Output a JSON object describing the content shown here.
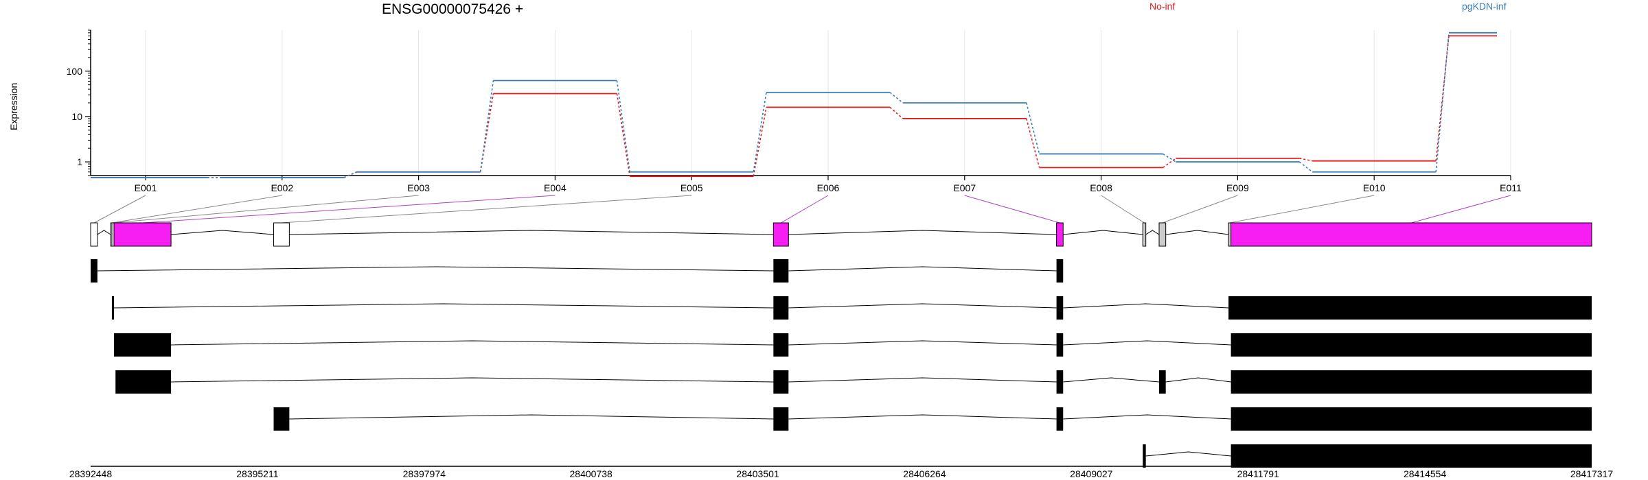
{
  "chart_data": {
    "type": "line",
    "title": "ENSG00000075426 +",
    "ylabel": "Expression",
    "xlabel": "",
    "y_scale": "log",
    "ylim": [
      0.5,
      800
    ],
    "y_ticks": [
      1,
      10,
      100
    ],
    "grid": "vertical-at-exon-ticks",
    "legend_placement": "top",
    "categories": [
      "E001",
      "E002",
      "E003",
      "E004",
      "E005",
      "E006",
      "E007",
      "E008",
      "E009",
      "E010",
      "E011"
    ],
    "series": [
      {
        "name": "No-inf",
        "color": "#e41a1c",
        "values": [
          0.45,
          0.45,
          0.6,
          32,
          0.48,
          16,
          9,
          0.75,
          1.2,
          1.05,
          600
        ]
      },
      {
        "name": "pgKDN-inf",
        "color": "#377eb8",
        "values": [
          0.45,
          0.45,
          0.6,
          62,
          0.6,
          34,
          20,
          1.5,
          1.0,
          0.6,
          700
        ]
      }
    ],
    "gene_model": {
      "coordinate_ticks": [
        "28392448",
        "28395211",
        "28397974",
        "28400738",
        "28403501",
        "28406264",
        "28409027",
        "28411791",
        "28414554",
        "28417317"
      ],
      "genomic_range": [
        28392448,
        28417317
      ],
      "exon_bins": [
        {
          "id": "E001",
          "start": 28392448,
          "end": 28392560,
          "type": "unchanged",
          "fill": "#ffffff"
        },
        {
          "id": "E002",
          "start": 28392780,
          "end": 28392800,
          "type": "unchanged",
          "fill": "#ffffff"
        },
        {
          "id": "E003",
          "start": 28392800,
          "end": 28392835,
          "type": "unchanged",
          "fill": "#ffffff"
        },
        {
          "id": "E004",
          "start": 28392835,
          "end": 28393780,
          "type": "significant",
          "fill": "#f71ef4"
        },
        {
          "id": "E005",
          "start": 28395480,
          "end": 28395740,
          "type": "unchanged",
          "fill": "#ffffff"
        },
        {
          "id": "E006",
          "start": 28403760,
          "end": 28404010,
          "type": "significant",
          "fill": "#f71ef4"
        },
        {
          "id": "E007",
          "start": 28408450,
          "end": 28408560,
          "type": "significant",
          "fill": "#f71ef4"
        },
        {
          "id": "E008",
          "start": 28409880,
          "end": 28409930,
          "type": "tested",
          "fill": "#cccccc"
        },
        {
          "id": "E009",
          "start": 28410150,
          "end": 28410260,
          "type": "tested",
          "fill": "#cccccc"
        },
        {
          "id": "E010",
          "start": 28411300,
          "end": 28411340,
          "type": "tested",
          "fill": "#cccccc"
        },
        {
          "id": "E011",
          "start": 28411340,
          "end": 28417317,
          "type": "significant",
          "fill": "#f71ef4"
        }
      ],
      "transcripts": [
        {
          "exons": [
            [
              28392448,
              28392560
            ],
            [
              28403760,
              28404010
            ],
            [
              28408450,
              28408560
            ]
          ]
        },
        {
          "exons": [
            [
              28392800,
              28392835
            ],
            [
              28403760,
              28404010
            ],
            [
              28408450,
              28408560
            ],
            [
              28411300,
              28417317
            ]
          ]
        },
        {
          "exons": [
            [
              28392835,
              28393780
            ],
            [
              28403760,
              28404010
            ],
            [
              28408450,
              28408560
            ],
            [
              28411340,
              28417317
            ]
          ]
        },
        {
          "exons": [
            [
              28392860,
              28393780
            ],
            [
              28403760,
              28404010
            ],
            [
              28408450,
              28408560
            ],
            [
              28410150,
              28410260
            ],
            [
              28411340,
              28417317
            ]
          ]
        },
        {
          "exons": [
            [
              28395480,
              28395740
            ],
            [
              28403760,
              28404010
            ],
            [
              28408450,
              28408560
            ],
            [
              28411340,
              28417317
            ]
          ]
        },
        {
          "exons": [
            [
              28409880,
              28409930
            ],
            [
              28411340,
              28417317
            ]
          ]
        }
      ]
    }
  }
}
